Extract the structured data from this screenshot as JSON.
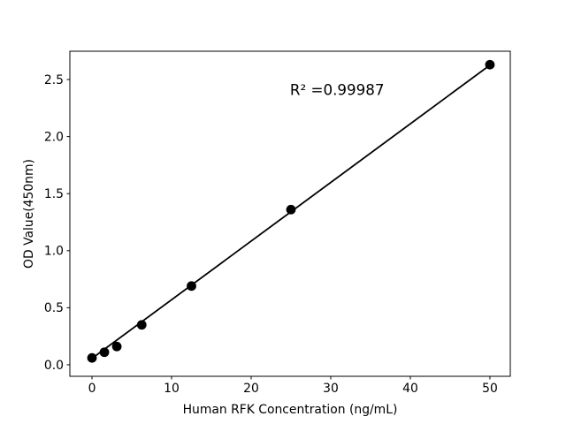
{
  "figure": {
    "background": "#ffffff"
  },
  "chart_data": {
    "type": "scatter",
    "title": "",
    "xlabel": "Human RFK Concentration (ng/mL)",
    "ylabel": "OD Value(450nm)",
    "series": [
      {
        "name": "standard-points",
        "x": [
          0,
          1.56,
          3.12,
          6.25,
          12.5,
          25,
          50
        ],
        "y": [
          0.06,
          0.11,
          0.16,
          0.35,
          0.69,
          1.36,
          2.63
        ],
        "marker": "circle",
        "marker_color": "#000000",
        "marker_radius": 5.4
      }
    ],
    "fit_line": {
      "x": [
        0,
        50
      ],
      "y": [
        0.056,
        2.626
      ],
      "color": "#000000",
      "width": 1.8
    },
    "annotation": {
      "text": "R² =0.99987",
      "r_squared": 0.99987,
      "x": 30.8,
      "y": 2.41
    },
    "xticks": [
      0,
      10,
      20,
      30,
      40,
      50
    ],
    "xtick_labels": [
      "0",
      "10",
      "20",
      "30",
      "40",
      "50"
    ],
    "yticks": [
      0.0,
      0.5,
      1.0,
      1.5,
      2.0,
      2.5
    ],
    "ytick_labels": [
      "0.0",
      "0.5",
      "1.0",
      "1.5",
      "2.0",
      "2.5"
    ],
    "xlim": [
      -2.78,
      52.56
    ],
    "ylim": [
      -0.101,
      2.748
    ],
    "grid": false,
    "legend": null,
    "axis_color": "#000000"
  }
}
